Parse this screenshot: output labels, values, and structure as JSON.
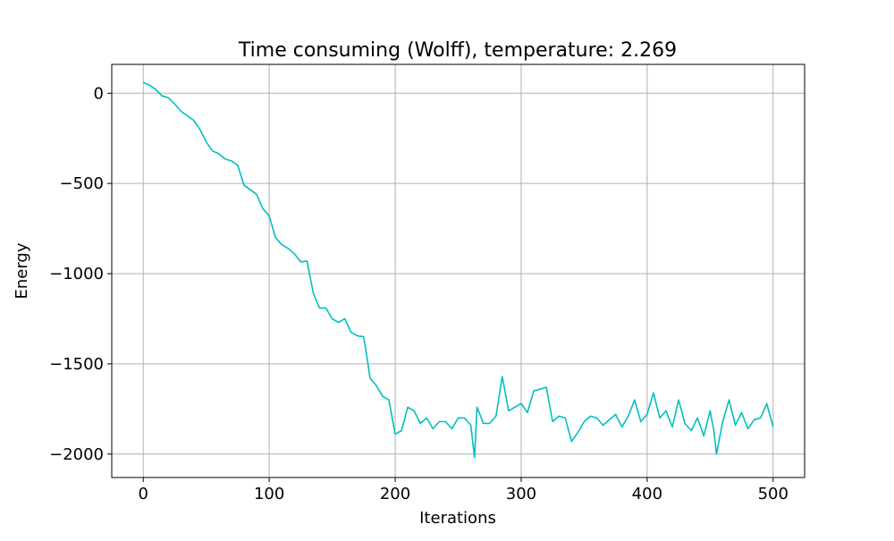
{
  "chart_data": {
    "type": "line",
    "title": "Time consuming (Wolff), temperature: 2.269",
    "xlabel": "Iterations",
    "ylabel": "Energy",
    "xlim": [
      -25,
      525
    ],
    "ylim": [
      -2130,
      160
    ],
    "grid": true,
    "x_ticks": [
      0,
      100,
      200,
      300,
      400,
      500
    ],
    "y_ticks": [
      0,
      -500,
      -1000,
      -1500,
      -2000
    ],
    "x_tick_labels": [
      "0",
      "100",
      "200",
      "300",
      "400",
      "500"
    ],
    "y_tick_labels": [
      "0",
      "−500",
      "−1000",
      "−1500",
      "−2000"
    ],
    "series": [
      {
        "color": "#00bfbf",
        "x": [
          0,
          5,
          10,
          15,
          20,
          25,
          30,
          35,
          40,
          45,
          50,
          55,
          60,
          65,
          70,
          75,
          80,
          85,
          90,
          95,
          100,
          105,
          110,
          115,
          120,
          125,
          130,
          135,
          140,
          145,
          150,
          155,
          160,
          165,
          170,
          175,
          178,
          180,
          185,
          190,
          195,
          200,
          205,
          210,
          215,
          220,
          225,
          230,
          235,
          240,
          245,
          250,
          255,
          260,
          263,
          265,
          270,
          275,
          280,
          285,
          290,
          295,
          300,
          305,
          310,
          315,
          320,
          325,
          330,
          335,
          340,
          345,
          350,
          355,
          360,
          365,
          370,
          375,
          380,
          385,
          390,
          395,
          400,
          405,
          410,
          415,
          420,
          425,
          430,
          435,
          440,
          445,
          450,
          453,
          455,
          460,
          465,
          470,
          475,
          480,
          485,
          490,
          495,
          500
        ],
        "y": [
          60,
          45,
          20,
          -15,
          -25,
          -60,
          -100,
          -125,
          -150,
          -200,
          -270,
          -320,
          -335,
          -365,
          -375,
          -400,
          -510,
          -535,
          -560,
          -640,
          -680,
          -800,
          -840,
          -860,
          -890,
          -935,
          -930,
          -1110,
          -1190,
          -1190,
          -1250,
          -1270,
          -1250,
          -1325,
          -1345,
          -1350,
          -1480,
          -1580,
          -1620,
          -1680,
          -1700,
          -1890,
          -1870,
          -1740,
          -1760,
          -1830,
          -1800,
          -1860,
          -1820,
          -1820,
          -1860,
          -1800,
          -1800,
          -1840,
          -2020,
          -1740,
          -1830,
          -1830,
          -1790,
          -1570,
          -1760,
          -1740,
          -1720,
          -1770,
          -1650,
          -1640,
          -1630,
          -1820,
          -1790,
          -1800,
          -1930,
          -1880,
          -1820,
          -1790,
          -1800,
          -1840,
          -1810,
          -1780,
          -1850,
          -1790,
          -1700,
          -1820,
          -1780,
          -1660,
          -1800,
          -1760,
          -1850,
          -1700,
          -1830,
          -1870,
          -1800,
          -1900,
          -1760,
          -1870,
          -2000,
          -1820,
          -1700,
          -1840,
          -1770,
          -1860,
          -1810,
          -1800,
          -1720,
          -1850
        ]
      }
    ]
  }
}
